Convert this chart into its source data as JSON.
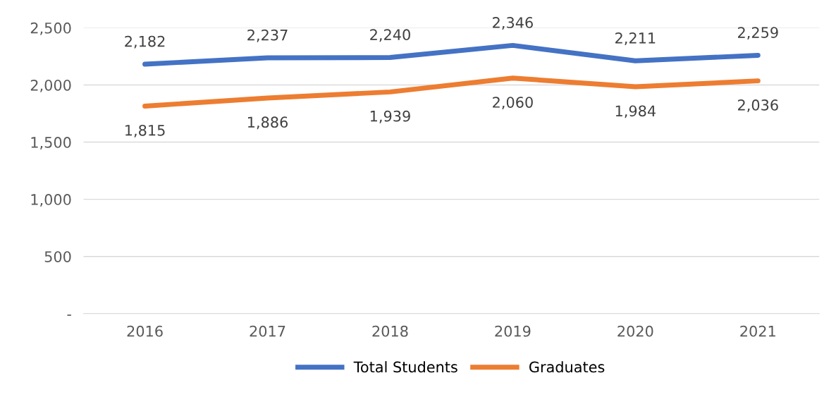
{
  "chart_data": {
    "type": "line",
    "categories": [
      "2016",
      "2017",
      "2018",
      "2019",
      "2020",
      "2021"
    ],
    "series": [
      {
        "name": "Total Students",
        "color": "#4472c4",
        "values": [
          2182,
          2237,
          2240,
          2346,
          2211,
          2259
        ],
        "value_labels": [
          "2,182",
          "2,237",
          "2,240",
          "2,346",
          "2,211",
          "2,259"
        ]
      },
      {
        "name": "Graduates",
        "color": "#ed7d31",
        "values": [
          1815,
          1886,
          1939,
          2060,
          1984,
          2036
        ],
        "value_labels": [
          "1,815",
          "1,886",
          "1,939",
          "2,060",
          "1,984",
          "2,036"
        ]
      }
    ],
    "ylim": [
      0,
      2500
    ],
    "yticks": [
      {
        "value": 0,
        "label": "-"
      },
      {
        "value": 500,
        "label": "500"
      },
      {
        "value": 1000,
        "label": "1,000"
      },
      {
        "value": 1500,
        "label": "1,500"
      },
      {
        "value": 2000,
        "label": "2,000"
      },
      {
        "value": 2500,
        "label": "2,500"
      }
    ],
    "grid": "y",
    "legend": "bottom",
    "marker": "none",
    "line_style": "solid"
  }
}
